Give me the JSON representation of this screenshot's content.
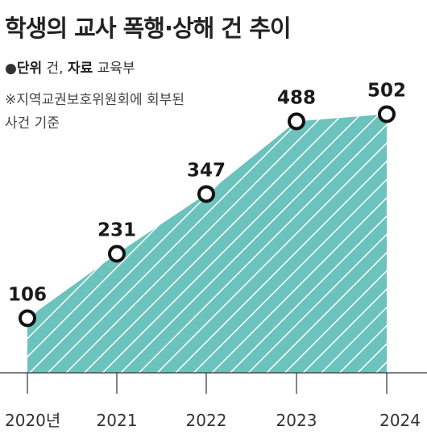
{
  "chart_data": {
    "type": "area",
    "title": "학생의 교사 폭행·상해 건 추이",
    "unit_label": "단위",
    "unit_value": "건",
    "source_label": "자료",
    "source_value": "교육부",
    "note_line1": "※지역교권보호위원회에 회부된",
    "note_line2": "사건 기준",
    "categories": [
      "2020년",
      "2021",
      "2022",
      "2023",
      "2024"
    ],
    "values": [
      106,
      231,
      347,
      488,
      502
    ],
    "ylim": [
      0,
      520
    ],
    "fill_color": "#6cc2bc",
    "hatch_color": "#ffffff",
    "marker_stroke": "#111111",
    "grid": false,
    "legend": "none"
  }
}
